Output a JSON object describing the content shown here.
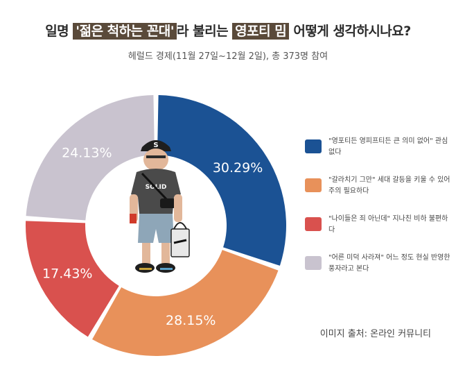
{
  "title": {
    "prefix": "일명 ",
    "highlight1": "'젊은 척하는 꼰대'",
    "middle": "라 불리는 ",
    "highlight2": "영포티 밈",
    "suffix": " 어떻게 생각하시나요?"
  },
  "subtitle": "헤럴드 경제(11월 27일~12월 2일), 총 373명 참여",
  "source": "이미지 출처: 온라인 커뮤니티",
  "chart_data": {
    "type": "pie",
    "categories": [
      "\"영포티든 영피프티든 큰 의미 없어\" 관심 없다",
      "\"갈라치기 그만\" 세대 갈등을 키울 수 있어 주의 필요하다",
      "\"나이들은 죄 아닌데\" 지나친 비하 불편하다",
      "\"어른 미덕 사라져\" 어느 정도 현실 반영한 풍자라고 본다"
    ],
    "values": [
      30.29,
      28.15,
      17.43,
      24.13
    ],
    "labels": [
      "30.29%",
      "28.15%",
      "17.43%",
      "24.13%"
    ],
    "colors": [
      "#1b5294",
      "#e8915a",
      "#d9514e",
      "#c9c3cf"
    ],
    "legend_position": "right"
  }
}
